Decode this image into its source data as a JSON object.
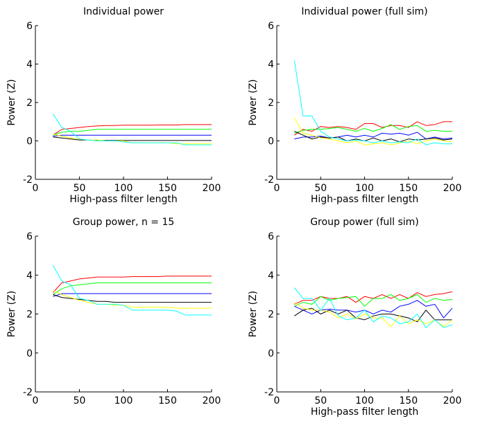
{
  "chart_data": [
    {
      "type": "line",
      "title": "Individual power",
      "xlabel": "High-pass filter length",
      "ylabel": "Power (Z)",
      "xlim": [
        0,
        200
      ],
      "ylim": [
        -2,
        6
      ],
      "xticks": [
        "0",
        "50",
        "100",
        "150",
        "200"
      ],
      "yticks": [
        "-2",
        "0",
        "2",
        "4",
        "6"
      ],
      "x": [
        20,
        30,
        40,
        50,
        60,
        70,
        80,
        90,
        100,
        110,
        120,
        130,
        140,
        150,
        160,
        170,
        180,
        190,
        200
      ],
      "series": [
        {
          "color": "#ff0000",
          "values": [
            0.3,
            0.6,
            0.65,
            0.7,
            0.75,
            0.78,
            0.8,
            0.8,
            0.82,
            0.82,
            0.82,
            0.82,
            0.83,
            0.83,
            0.83,
            0.85,
            0.85,
            0.85,
            0.85
          ]
        },
        {
          "color": "#00ff00",
          "values": [
            0.3,
            0.45,
            0.5,
            0.5,
            0.55,
            0.6,
            0.6,
            0.6,
            0.6,
            0.6,
            0.6,
            0.6,
            0.6,
            0.6,
            0.6,
            0.6,
            0.6,
            0.6,
            0.6
          ]
        },
        {
          "color": "#0000ff",
          "values": [
            0.25,
            0.3,
            0.3,
            0.3,
            0.3,
            0.3,
            0.3,
            0.3,
            0.3,
            0.3,
            0.3,
            0.3,
            0.3,
            0.3,
            0.3,
            0.3,
            0.3,
            0.3,
            0.3
          ]
        },
        {
          "color": "#000000",
          "values": [
            0.2,
            0.15,
            0.1,
            0.05,
            0.05,
            0.02,
            0.02,
            0.02,
            0.02,
            0.02,
            0.02,
            0.02,
            0.02,
            0.02,
            0.02,
            0.02,
            0.02,
            0.02,
            0.02
          ]
        },
        {
          "color": "#ffff00",
          "values": [
            0.35,
            0.25,
            0.15,
            0.1,
            0.05,
            0.05,
            0.0,
            0.0,
            0.0,
            -0.1,
            -0.1,
            -0.1,
            -0.1,
            -0.1,
            -0.15,
            -0.15,
            -0.15,
            -0.15,
            -0.15
          ]
        },
        {
          "color": "#00ffff",
          "values": [
            1.4,
            0.7,
            0.5,
            0.1,
            0.05,
            0.0,
            0.0,
            0.0,
            -0.05,
            -0.1,
            -0.1,
            -0.1,
            -0.1,
            -0.1,
            -0.1,
            -0.2,
            -0.2,
            -0.2,
            -0.2
          ]
        }
      ]
    },
    {
      "type": "line",
      "title": "Individual power (full sim)",
      "xlabel": "High-pass filter length",
      "ylabel": "Power (Z)",
      "xlim": [
        0,
        200
      ],
      "ylim": [
        -2,
        6
      ],
      "xticks": [
        "0",
        "50",
        "100",
        "150",
        "200"
      ],
      "yticks": [
        "-2",
        "0",
        "2",
        "4",
        "6"
      ],
      "x": [
        20,
        30,
        40,
        50,
        60,
        70,
        80,
        90,
        100,
        110,
        120,
        130,
        140,
        150,
        160,
        170,
        180,
        190,
        200
      ],
      "series": [
        {
          "color": "#ff0000",
          "values": [
            0.3,
            0.6,
            0.5,
            0.75,
            0.7,
            0.75,
            0.7,
            0.6,
            0.9,
            0.9,
            0.7,
            0.8,
            0.8,
            0.7,
            1.0,
            0.8,
            0.85,
            1.0,
            1.0
          ]
        },
        {
          "color": "#00ff00",
          "values": [
            0.4,
            0.55,
            0.6,
            0.6,
            0.65,
            0.7,
            0.6,
            0.5,
            0.65,
            0.5,
            0.65,
            0.85,
            0.6,
            0.75,
            0.8,
            0.5,
            0.55,
            0.5,
            0.5
          ]
        },
        {
          "color": "#0000ff",
          "values": [
            0.1,
            0.2,
            0.2,
            0.25,
            0.15,
            0.2,
            0.3,
            0.2,
            0.3,
            0.2,
            0.4,
            0.35,
            0.4,
            0.3,
            0.45,
            0.1,
            0.2,
            0.1,
            0.15
          ]
        },
        {
          "color": "#000000",
          "values": [
            0.5,
            0.3,
            0.1,
            0.2,
            0.15,
            0.2,
            0.0,
            0.1,
            0.0,
            0.15,
            0.0,
            0.1,
            -0.05,
            0.1,
            0.05,
            0.1,
            0.15,
            0.05,
            0.1
          ]
        },
        {
          "color": "#ffff00",
          "values": [
            1.2,
            0.4,
            0.3,
            0.15,
            0.1,
            0.0,
            -0.1,
            0.0,
            -0.2,
            -0.15,
            -0.1,
            -0.2,
            -0.1,
            0.0,
            -0.15,
            0.0,
            0.1,
            0.0,
            -0.05
          ]
        },
        {
          "color": "#00ffff",
          "values": [
            4.2,
            1.3,
            1.3,
            0.5,
            0.2,
            0.1,
            0.0,
            0.05,
            0.0,
            -0.1,
            0.0,
            -0.1,
            -0.05,
            -0.1,
            0.1,
            -0.2,
            -0.1,
            -0.15,
            -0.15
          ]
        }
      ]
    },
    {
      "type": "line",
      "title": "Group power, n =  15",
      "xlabel": "",
      "ylabel": "Power (Z)",
      "xlim": [
        0,
        200
      ],
      "ylim": [
        -2,
        6
      ],
      "xticks": [
        "0",
        "50",
        "100",
        "150",
        "200"
      ],
      "yticks": [
        "-2",
        "0",
        "2",
        "4",
        "6"
      ],
      "x": [
        20,
        30,
        40,
        50,
        60,
        70,
        80,
        90,
        100,
        110,
        120,
        130,
        140,
        150,
        160,
        170,
        180,
        190,
        200
      ],
      "series": [
        {
          "color": "#ff0000",
          "values": [
            3.1,
            3.6,
            3.7,
            3.8,
            3.85,
            3.9,
            3.9,
            3.9,
            3.9,
            3.92,
            3.92,
            3.92,
            3.92,
            3.95,
            3.95,
            3.95,
            3.95,
            3.95,
            3.95
          ]
        },
        {
          "color": "#00ff00",
          "values": [
            3.0,
            3.3,
            3.45,
            3.5,
            3.55,
            3.6,
            3.6,
            3.6,
            3.6,
            3.6,
            3.6,
            3.6,
            3.6,
            3.6,
            3.6,
            3.6,
            3.6,
            3.6,
            3.6
          ]
        },
        {
          "color": "#0000ff",
          "values": [
            2.9,
            3.05,
            3.05,
            3.05,
            3.05,
            3.05,
            3.05,
            3.05,
            3.05,
            3.05,
            3.05,
            3.05,
            3.05,
            3.05,
            3.05,
            3.05,
            3.05,
            3.05,
            3.05
          ]
        },
        {
          "color": "#000000",
          "values": [
            3.0,
            2.85,
            2.8,
            2.75,
            2.7,
            2.65,
            2.65,
            2.6,
            2.6,
            2.6,
            2.6,
            2.6,
            2.6,
            2.6,
            2.6,
            2.6,
            2.6,
            2.6,
            2.6
          ]
        },
        {
          "color": "#ffff00",
          "values": [
            3.2,
            3.0,
            2.85,
            2.7,
            2.6,
            2.5,
            2.5,
            2.45,
            2.45,
            2.35,
            2.35,
            2.35,
            2.35,
            2.35,
            2.3,
            2.3,
            2.3,
            2.3,
            2.3
          ]
        },
        {
          "color": "#00ffff",
          "values": [
            4.5,
            3.7,
            3.5,
            2.8,
            2.7,
            2.5,
            2.5,
            2.5,
            2.45,
            2.2,
            2.2,
            2.2,
            2.2,
            2.2,
            2.15,
            1.95,
            1.95,
            1.95,
            1.95
          ]
        }
      ]
    },
    {
      "type": "line",
      "title": "Group power (full sim)",
      "xlabel": "High-pass filter length",
      "ylabel": "Power (Z)",
      "xlim": [
        0,
        200
      ],
      "ylim": [
        -2,
        6
      ],
      "xticks": [
        "0",
        "50",
        "100",
        "150",
        "200"
      ],
      "yticks": [
        "-2",
        "0",
        "2",
        "4",
        "6"
      ],
      "x": [
        20,
        30,
        40,
        50,
        60,
        70,
        80,
        90,
        100,
        110,
        120,
        130,
        140,
        150,
        160,
        170,
        180,
        190,
        200
      ],
      "series": [
        {
          "color": "#ff0000",
          "values": [
            2.5,
            2.7,
            2.7,
            2.9,
            2.8,
            2.8,
            2.9,
            2.6,
            2.9,
            2.8,
            3.0,
            2.8,
            3.0,
            2.8,
            3.1,
            2.9,
            3.0,
            3.05,
            3.15
          ]
        },
        {
          "color": "#00ff00",
          "values": [
            2.4,
            2.6,
            2.5,
            2.9,
            2.7,
            2.8,
            2.85,
            2.9,
            2.4,
            2.8,
            2.8,
            3.0,
            2.7,
            2.8,
            3.0,
            2.6,
            2.8,
            2.7,
            2.75
          ]
        },
        {
          "color": "#0000ff",
          "values": [
            2.4,
            2.2,
            2.0,
            2.2,
            2.25,
            2.2,
            2.2,
            2.1,
            2.2,
            2.0,
            2.2,
            2.1,
            2.4,
            2.5,
            2.7,
            2.4,
            2.5,
            1.8,
            2.3
          ]
        },
        {
          "color": "#000000",
          "values": [
            1.9,
            2.2,
            2.3,
            2.0,
            2.2,
            2.0,
            2.2,
            1.8,
            1.7,
            1.9,
            2.0,
            2.0,
            1.9,
            1.8,
            1.6,
            2.2,
            1.7,
            1.7,
            1.7
          ]
        },
        {
          "color": "#ffff00",
          "values": [
            2.6,
            2.3,
            2.2,
            2.2,
            2.1,
            1.8,
            2.0,
            1.75,
            2.0,
            1.8,
            1.8,
            1.35,
            1.9,
            1.5,
            1.7,
            1.5,
            1.7,
            1.35,
            1.7
          ]
        },
        {
          "color": "#00ffff",
          "values": [
            3.35,
            2.8,
            2.8,
            2.2,
            2.8,
            1.9,
            1.7,
            1.8,
            2.2,
            1.6,
            1.9,
            1.8,
            1.5,
            1.6,
            2.0,
            1.3,
            1.7,
            1.3,
            1.45
          ]
        }
      ]
    }
  ]
}
